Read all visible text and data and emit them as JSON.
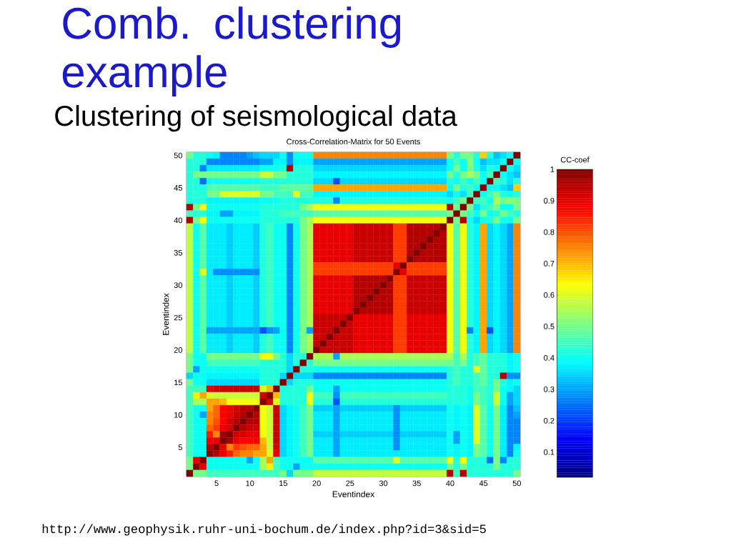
{
  "chart_data": {
    "type": "heatmap",
    "title": "Comb. clustering example",
    "subtitle": "Clustering of seismological data",
    "annotations": [
      "Cross-Correlation-Matrix for 50 Events",
      "http://www.geophysik.ruhr-uni-bochum.de/index.php?id=3&sid=5"
    ],
    "xlabel": "Eventindex",
    "ylabel": "Eventindex",
    "clabel": "CC-coef",
    "clim": [
      0.02,
      1
    ],
    "cticks": [
      0.1,
      0.2,
      0.3,
      0.4,
      0.5,
      0.6,
      0.7,
      0.8,
      0.9,
      1
    ],
    "categories": [
      null,
      null,
      null,
      null,
      "5",
      null,
      null,
      null,
      null,
      "10",
      null,
      null,
      null,
      null,
      "15",
      null,
      null,
      null,
      null,
      "20",
      null,
      null,
      null,
      null,
      "25",
      null,
      null,
      null,
      null,
      "30",
      null,
      null,
      null,
      null,
      "35",
      null,
      null,
      null,
      null,
      "40",
      null,
      null,
      null,
      null,
      "45",
      null,
      null,
      null,
      null,
      "50"
    ],
    "y_categories": [
      "50",
      null,
      null,
      null,
      null,
      "45",
      null,
      null,
      null,
      null,
      "40",
      null,
      null,
      null,
      null,
      "35",
      null,
      null,
      null,
      null,
      "30",
      null,
      null,
      null,
      null,
      "25",
      null,
      null,
      null,
      null,
      "20",
      null,
      null,
      null,
      null,
      "15",
      null,
      null,
      null,
      null,
      "10",
      null,
      null,
      null,
      null,
      "5",
      null,
      null,
      null,
      null
    ],
    "cells": [
      [
        0.5,
        0.42,
        0.42,
        0.4,
        0.38,
        0.27,
        0.27,
        0.27,
        0.27,
        0.3,
        0.33,
        0.35,
        0.35,
        0.35,
        0.4,
        0.28,
        0.4,
        0.4,
        0.4,
        0.75,
        0.75,
        0.75,
        0.75,
        0.75,
        0.75,
        0.75,
        0.75,
        0.75,
        0.75,
        0.75,
        0.75,
        0.75,
        0.75,
        0.75,
        0.75,
        0.75,
        0.75,
        0.75,
        0.75,
        0.5,
        0.42,
        0.5,
        0.5,
        0.42,
        0.68,
        0.42,
        0.33,
        0.36,
        0.4,
        1
      ],
      [
        0.42,
        0.42,
        0.42,
        0.27,
        0.27,
        0.27,
        0.27,
        0.27,
        0.27,
        0.27,
        0.27,
        0.3,
        0.3,
        0.38,
        0.38,
        0.28,
        0.38,
        0.38,
        0.38,
        0.3,
        0.3,
        0.3,
        0.3,
        0.3,
        0.3,
        0.3,
        0.3,
        0.3,
        0.3,
        0.3,
        0.3,
        0.3,
        0.3,
        0.3,
        0.3,
        0.3,
        0.3,
        0.3,
        0.3,
        0.4,
        0.45,
        0.4,
        0.52,
        0.4,
        0.33,
        0.36,
        0.36,
        0.4,
        1,
        0.4
      ],
      [
        0.42,
        0.42,
        0.27,
        0.37,
        0.37,
        0.37,
        0.37,
        0.37,
        0.37,
        0.37,
        0.37,
        0.4,
        0.4,
        0.4,
        0.42,
        0.95,
        0.42,
        0.42,
        0.42,
        0.35,
        0.35,
        0.35,
        0.35,
        0.35,
        0.35,
        0.35,
        0.35,
        0.35,
        0.35,
        0.35,
        0.35,
        0.35,
        0.35,
        0.35,
        0.35,
        0.35,
        0.35,
        0.35,
        0.35,
        0.4,
        0.5,
        0.4,
        0.5,
        0.42,
        0.36,
        0.42,
        0.4,
        1,
        0.4,
        0.36
      ],
      [
        0.42,
        0.5,
        0.5,
        0.5,
        0.5,
        0.5,
        0.5,
        0.5,
        0.5,
        0.5,
        0.5,
        0.58,
        0.58,
        0.5,
        0.5,
        0.42,
        0.42,
        0.42,
        0.42,
        0.38,
        0.38,
        0.38,
        0.38,
        0.38,
        0.38,
        0.38,
        0.38,
        0.38,
        0.38,
        0.38,
        0.38,
        0.38,
        0.38,
        0.38,
        0.38,
        0.38,
        0.38,
        0.38,
        0.38,
        0.5,
        0.42,
        0.5,
        0.55,
        0.5,
        0.4,
        0.45,
        1,
        0.4,
        0.36,
        0.33
      ],
      [
        0.42,
        0.42,
        0.25,
        0.4,
        0.4,
        0.4,
        0.4,
        0.4,
        0.4,
        0.4,
        0.4,
        0.42,
        0.42,
        0.42,
        0.42,
        0.42,
        0.42,
        0.42,
        0.42,
        0.35,
        0.35,
        0.35,
        0.22,
        0.35,
        0.35,
        0.35,
        0.35,
        0.35,
        0.35,
        0.35,
        0.35,
        0.35,
        0.35,
        0.35,
        0.35,
        0.35,
        0.35,
        0.35,
        0.35,
        0.42,
        0.4,
        0.45,
        0.4,
        0.45,
        0.4,
        1,
        0.45,
        0.42,
        0.36,
        0.42
      ],
      [
        0.42,
        0.42,
        0.42,
        0.47,
        0.47,
        0.47,
        0.47,
        0.47,
        0.47,
        0.47,
        0.47,
        0.45,
        0.45,
        0.45,
        0.48,
        0.48,
        0.48,
        0.48,
        0.48,
        0.72,
        0.72,
        0.72,
        0.72,
        0.72,
        0.72,
        0.72,
        0.72,
        0.72,
        0.72,
        0.72,
        0.72,
        0.72,
        0.72,
        0.72,
        0.72,
        0.72,
        0.72,
        0.72,
        0.72,
        0.4,
        0.5,
        0.42,
        0.45,
        0.4,
        1,
        0.4,
        0.4,
        0.36,
        0.33,
        0.68
      ],
      [
        0.42,
        0.42,
        0.42,
        0.5,
        0.5,
        0.6,
        0.6,
        0.6,
        0.6,
        0.6,
        0.6,
        0.5,
        0.5,
        0.45,
        0.45,
        0.45,
        0.6,
        0.45,
        0.45,
        0.38,
        0.38,
        0.38,
        0.38,
        0.38,
        0.38,
        0.38,
        0.38,
        0.38,
        0.38,
        0.38,
        0.38,
        0.38,
        0.38,
        0.38,
        0.38,
        0.38,
        0.38,
        0.38,
        0.38,
        0.35,
        0.4,
        0.36,
        0.45,
        1,
        0.4,
        0.45,
        0.5,
        0.42,
        0.4,
        0.42
      ],
      [
        0.42,
        0.42,
        0.42,
        0.38,
        0.38,
        0.38,
        0.38,
        0.38,
        0.38,
        0.38,
        0.38,
        0.4,
        0.4,
        0.4,
        0.42,
        0.42,
        0.42,
        0.42,
        0.42,
        0.42,
        0.42,
        0.42,
        0.27,
        0.42,
        0.42,
        0.42,
        0.42,
        0.42,
        0.42,
        0.42,
        0.42,
        0.42,
        0.42,
        0.42,
        0.42,
        0.42,
        0.42,
        0.42,
        0.42,
        0.4,
        0.45,
        0.5,
        1,
        0.45,
        0.45,
        0.4,
        0.55,
        0.5,
        0.52,
        0.5
      ],
      [
        0.95,
        0.5,
        0.62,
        0.4,
        0.4,
        0.4,
        0.4,
        0.4,
        0.4,
        0.4,
        0.4,
        0.42,
        0.42,
        0.42,
        0.42,
        0.42,
        0.42,
        0.5,
        0.55,
        0.62,
        0.62,
        0.62,
        0.62,
        0.62,
        0.62,
        0.62,
        0.62,
        0.62,
        0.62,
        0.62,
        0.62,
        0.62,
        0.62,
        0.62,
        0.62,
        0.62,
        0.62,
        0.62,
        0.62,
        0.95,
        0.5,
        1,
        0.5,
        0.36,
        0.42,
        0.45,
        0.5,
        0.4,
        0.4,
        0.5
      ],
      [
        0.45,
        0.42,
        0.42,
        0.38,
        0.38,
        0.3,
        0.3,
        0.38,
        0.38,
        0.38,
        0.38,
        0.42,
        0.42,
        0.42,
        0.45,
        0.45,
        0.45,
        0.45,
        0.45,
        0.47,
        0.47,
        0.47,
        0.47,
        0.47,
        0.47,
        0.47,
        0.47,
        0.47,
        0.47,
        0.47,
        0.47,
        0.47,
        0.47,
        0.47,
        0.47,
        0.47,
        0.47,
        0.47,
        0.47,
        0.5,
        1,
        0.5,
        0.45,
        0.4,
        0.5,
        0.4,
        0.42,
        0.5,
        0.45,
        0.42
      ],
      [
        0.95,
        0.5,
        0.62,
        0.4,
        0.4,
        0.4,
        0.4,
        0.4,
        0.4,
        0.4,
        0.4,
        0.42,
        0.42,
        0.42,
        0.42,
        0.42,
        0.42,
        0.5,
        0.55,
        0.62,
        0.62,
        0.62,
        0.62,
        0.62,
        0.62,
        0.62,
        0.62,
        0.62,
        0.62,
        0.62,
        0.62,
        0.62,
        0.62,
        0.62,
        0.62,
        0.62,
        0.62,
        0.62,
        0.62,
        1,
        0.5,
        0.95,
        0.4,
        0.35,
        0.4,
        0.42,
        0.5,
        0.4,
        0.4,
        0.5
      ],
      [
        0.57,
        0.4,
        0.47,
        0.37,
        0.37,
        0.37,
        0.34,
        0.37,
        0.37,
        0.37,
        0.34,
        0.42,
        0.45,
        0.4,
        0.4,
        0.27,
        0.4,
        0.5,
        0.55,
        0.9,
        0.9,
        0.9,
        0.9,
        0.9,
        0.9,
        0.93,
        0.93,
        0.93,
        0.93,
        0.93,
        0.93,
        0.82,
        0.82,
        0.95,
        0.95,
        0.95,
        0.95,
        0.95,
        1,
        0.62,
        0.47,
        0.62,
        0.42,
        0.38,
        0.72,
        0.35,
        0.38,
        0.35,
        0.3,
        0.75
      ],
      [
        0.57,
        0.4,
        0.47,
        0.37,
        0.37,
        0.37,
        0.34,
        0.37,
        0.37,
        0.37,
        0.34,
        0.42,
        0.45,
        0.4,
        0.4,
        0.27,
        0.4,
        0.5,
        0.55,
        0.9,
        0.9,
        0.9,
        0.9,
        0.9,
        0.9,
        0.93,
        0.93,
        0.93,
        0.93,
        0.93,
        0.93,
        0.82,
        0.82,
        0.95,
        0.95,
        0.95,
        0.95,
        1,
        0.95,
        0.62,
        0.47,
        0.62,
        0.42,
        0.38,
        0.72,
        0.35,
        0.38,
        0.35,
        0.3,
        0.75
      ],
      [
        0.57,
        0.4,
        0.47,
        0.37,
        0.37,
        0.37,
        0.34,
        0.37,
        0.37,
        0.37,
        0.34,
        0.42,
        0.45,
        0.4,
        0.4,
        0.27,
        0.4,
        0.5,
        0.55,
        0.9,
        0.9,
        0.9,
        0.9,
        0.9,
        0.9,
        0.93,
        0.93,
        0.93,
        0.93,
        0.93,
        0.93,
        0.82,
        0.82,
        0.95,
        0.95,
        0.95,
        1,
        0.95,
        0.95,
        0.62,
        0.47,
        0.62,
        0.42,
        0.38,
        0.72,
        0.35,
        0.38,
        0.35,
        0.3,
        0.75
      ],
      [
        0.57,
        0.4,
        0.47,
        0.37,
        0.37,
        0.37,
        0.34,
        0.37,
        0.37,
        0.37,
        0.34,
        0.42,
        0.45,
        0.4,
        0.4,
        0.27,
        0.4,
        0.5,
        0.55,
        0.9,
        0.9,
        0.9,
        0.9,
        0.9,
        0.9,
        0.93,
        0.93,
        0.93,
        0.93,
        0.93,
        0.93,
        0.82,
        0.82,
        0.95,
        0.95,
        1,
        0.95,
        0.95,
        0.95,
        0.62,
        0.47,
        0.62,
        0.42,
        0.38,
        0.72,
        0.35,
        0.38,
        0.35,
        0.3,
        0.75
      ],
      [
        0.57,
        0.4,
        0.47,
        0.37,
        0.37,
        0.37,
        0.34,
        0.37,
        0.37,
        0.37,
        0.34,
        0.42,
        0.45,
        0.4,
        0.4,
        0.27,
        0.4,
        0.5,
        0.55,
        0.9,
        0.9,
        0.9,
        0.9,
        0.9,
        0.9,
        0.93,
        0.93,
        0.93,
        0.93,
        0.93,
        0.93,
        0.82,
        0.82,
        0.95,
        1,
        0.95,
        0.95,
        0.95,
        0.95,
        0.62,
        0.47,
        0.62,
        0.42,
        0.38,
        0.72,
        0.35,
        0.38,
        0.35,
        0.3,
        0.75
      ],
      [
        0.57,
        0.4,
        0.47,
        0.37,
        0.37,
        0.37,
        0.34,
        0.37,
        0.37,
        0.37,
        0.34,
        0.42,
        0.45,
        0.4,
        0.4,
        0.27,
        0.4,
        0.5,
        0.55,
        0.9,
        0.9,
        0.9,
        0.9,
        0.9,
        0.9,
        0.93,
        0.93,
        0.93,
        0.93,
        0.93,
        0.93,
        0.82,
        0.82,
        1,
        0.95,
        0.95,
        0.95,
        0.95,
        0.95,
        0.62,
        0.47,
        0.62,
        0.42,
        0.38,
        0.72,
        0.35,
        0.38,
        0.35,
        0.3,
        0.75
      ],
      [
        0.57,
        0.4,
        0.47,
        0.37,
        0.37,
        0.37,
        0.34,
        0.37,
        0.37,
        0.37,
        0.34,
        0.42,
        0.45,
        0.4,
        0.4,
        0.27,
        0.4,
        0.5,
        0.55,
        0.82,
        0.82,
        0.82,
        0.82,
        0.82,
        0.82,
        0.82,
        0.82,
        0.82,
        0.82,
        0.82,
        0.82,
        0.9,
        1,
        0.82,
        0.82,
        0.82,
        0.82,
        0.82,
        0.82,
        0.62,
        0.47,
        0.62,
        0.42,
        0.38,
        0.72,
        0.35,
        0.38,
        0.35,
        0.3,
        0.75
      ],
      [
        0.57,
        0.4,
        0.6,
        0.37,
        0.28,
        0.28,
        0.28,
        0.28,
        0.28,
        0.28,
        0.28,
        0.42,
        0.45,
        0.4,
        0.4,
        0.27,
        0.4,
        0.5,
        0.55,
        0.82,
        0.82,
        0.82,
        0.82,
        0.82,
        0.82,
        0.82,
        0.82,
        0.82,
        0.82,
        0.82,
        0.82,
        1,
        0.9,
        0.82,
        0.82,
        0.82,
        0.82,
        0.82,
        0.82,
        0.62,
        0.47,
        0.62,
        0.42,
        0.38,
        0.72,
        0.35,
        0.38,
        0.35,
        0.3,
        0.75
      ],
      [
        0.57,
        0.4,
        0.47,
        0.37,
        0.37,
        0.37,
        0.34,
        0.37,
        0.37,
        0.37,
        0.34,
        0.42,
        0.45,
        0.4,
        0.4,
        0.27,
        0.4,
        0.5,
        0.55,
        0.9,
        0.9,
        0.9,
        0.9,
        0.9,
        0.9,
        0.95,
        0.95,
        0.95,
        0.95,
        0.95,
        1,
        0.82,
        0.82,
        0.93,
        0.93,
        0.93,
        0.93,
        0.93,
        0.93,
        0.62,
        0.47,
        0.62,
        0.42,
        0.38,
        0.72,
        0.35,
        0.38,
        0.35,
        0.3,
        0.75
      ],
      [
        0.57,
        0.4,
        0.47,
        0.37,
        0.37,
        0.37,
        0.34,
        0.37,
        0.37,
        0.37,
        0.34,
        0.42,
        0.45,
        0.4,
        0.4,
        0.27,
        0.4,
        0.5,
        0.55,
        0.9,
        0.9,
        0.9,
        0.9,
        0.9,
        0.9,
        0.95,
        0.95,
        0.95,
        0.95,
        1,
        0.95,
        0.82,
        0.82,
        0.93,
        0.93,
        0.93,
        0.93,
        0.93,
        0.93,
        0.62,
        0.47,
        0.62,
        0.42,
        0.38,
        0.72,
        0.35,
        0.38,
        0.35,
        0.3,
        0.75
      ],
      [
        0.57,
        0.4,
        0.47,
        0.37,
        0.37,
        0.37,
        0.34,
        0.37,
        0.37,
        0.37,
        0.34,
        0.42,
        0.45,
        0.4,
        0.4,
        0.27,
        0.4,
        0.5,
        0.55,
        0.9,
        0.9,
        0.9,
        0.9,
        0.9,
        0.9,
        0.95,
        0.95,
        0.95,
        1,
        0.95,
        0.95,
        0.82,
        0.82,
        0.93,
        0.93,
        0.93,
        0.93,
        0.93,
        0.93,
        0.62,
        0.47,
        0.62,
        0.42,
        0.38,
        0.72,
        0.35,
        0.38,
        0.35,
        0.3,
        0.75
      ],
      [
        0.57,
        0.4,
        0.47,
        0.37,
        0.37,
        0.37,
        0.34,
        0.37,
        0.37,
        0.37,
        0.34,
        0.42,
        0.45,
        0.4,
        0.4,
        0.27,
        0.4,
        0.5,
        0.55,
        0.9,
        0.9,
        0.9,
        0.9,
        0.9,
        0.9,
        0.95,
        0.95,
        1,
        0.95,
        0.95,
        0.95,
        0.82,
        0.82,
        0.93,
        0.93,
        0.93,
        0.93,
        0.93,
        0.93,
        0.62,
        0.47,
        0.62,
        0.42,
        0.38,
        0.72,
        0.35,
        0.38,
        0.35,
        0.3,
        0.75
      ],
      [
        0.57,
        0.4,
        0.47,
        0.37,
        0.37,
        0.37,
        0.34,
        0.37,
        0.37,
        0.37,
        0.34,
        0.42,
        0.45,
        0.4,
        0.4,
        0.27,
        0.4,
        0.5,
        0.55,
        0.9,
        0.9,
        0.9,
        0.9,
        0.9,
        0.9,
        0.95,
        1,
        0.95,
        0.95,
        0.95,
        0.95,
        0.82,
        0.82,
        0.93,
        0.93,
        0.93,
        0.93,
        0.93,
        0.93,
        0.62,
        0.47,
        0.62,
        0.42,
        0.38,
        0.72,
        0.35,
        0.38,
        0.35,
        0.3,
        0.75
      ],
      [
        0.57,
        0.4,
        0.47,
        0.37,
        0.37,
        0.37,
        0.34,
        0.37,
        0.37,
        0.37,
        0.34,
        0.42,
        0.45,
        0.4,
        0.4,
        0.27,
        0.4,
        0.5,
        0.55,
        0.9,
        0.9,
        0.9,
        0.9,
        0.9,
        0.9,
        1,
        0.95,
        0.95,
        0.95,
        0.95,
        0.95,
        0.82,
        0.82,
        0.93,
        0.93,
        0.93,
        0.93,
        0.93,
        0.93,
        0.62,
        0.47,
        0.62,
        0.42,
        0.38,
        0.72,
        0.35,
        0.38,
        0.35,
        0.3,
        0.75
      ],
      [
        0.57,
        0.4,
        0.47,
        0.37,
        0.37,
        0.37,
        0.34,
        0.37,
        0.37,
        0.37,
        0.34,
        0.42,
        0.45,
        0.4,
        0.4,
        0.27,
        0.4,
        0.5,
        0.55,
        0.93,
        0.93,
        0.93,
        0.93,
        0.93,
        1,
        0.9,
        0.9,
        0.9,
        0.9,
        0.9,
        0.9,
        0.82,
        0.82,
        0.9,
        0.9,
        0.9,
        0.9,
        0.9,
        0.9,
        0.62,
        0.47,
        0.62,
        0.42,
        0.38,
        0.72,
        0.35,
        0.38,
        0.35,
        0.3,
        0.75
      ],
      [
        0.57,
        0.4,
        0.47,
        0.37,
        0.37,
        0.37,
        0.34,
        0.37,
        0.37,
        0.37,
        0.34,
        0.42,
        0.45,
        0.4,
        0.4,
        0.27,
        0.4,
        0.5,
        0.55,
        0.93,
        0.93,
        0.93,
        0.93,
        1,
        0.93,
        0.9,
        0.9,
        0.9,
        0.9,
        0.9,
        0.9,
        0.82,
        0.82,
        0.9,
        0.9,
        0.9,
        0.9,
        0.9,
        0.9,
        0.62,
        0.47,
        0.62,
        0.42,
        0.38,
        0.72,
        0.35,
        0.38,
        0.35,
        0.3,
        0.75
      ],
      [
        0.57,
        0.4,
        0.47,
        0.3,
        0.3,
        0.3,
        0.3,
        0.3,
        0.3,
        0.3,
        0.3,
        0.22,
        0.28,
        0.3,
        0.4,
        0.27,
        0.4,
        0.5,
        0.3,
        0.93,
        0.93,
        0.93,
        1,
        0.93,
        0.93,
        0.9,
        0.9,
        0.9,
        0.9,
        0.9,
        0.9,
        0.82,
        0.82,
        0.9,
        0.9,
        0.9,
        0.9,
        0.9,
        0.9,
        0.62,
        0.47,
        0.62,
        0.27,
        0.38,
        0.72,
        0.22,
        0.38,
        0.35,
        0.3,
        0.75
      ],
      [
        0.57,
        0.4,
        0.47,
        0.37,
        0.37,
        0.37,
        0.34,
        0.37,
        0.37,
        0.37,
        0.34,
        0.42,
        0.45,
        0.4,
        0.4,
        0.27,
        0.4,
        0.5,
        0.55,
        0.93,
        0.93,
        1,
        0.93,
        0.93,
        0.93,
        0.9,
        0.9,
        0.9,
        0.9,
        0.9,
        0.9,
        0.82,
        0.82,
        0.9,
        0.9,
        0.9,
        0.9,
        0.9,
        0.9,
        0.62,
        0.47,
        0.62,
        0.42,
        0.38,
        0.72,
        0.35,
        0.38,
        0.35,
        0.3,
        0.75
      ],
      [
        0.57,
        0.4,
        0.47,
        0.37,
        0.37,
        0.37,
        0.34,
        0.37,
        0.37,
        0.37,
        0.34,
        0.42,
        0.45,
        0.4,
        0.4,
        0.27,
        0.4,
        0.5,
        0.55,
        0.93,
        1,
        0.93,
        0.93,
        0.93,
        0.93,
        0.9,
        0.9,
        0.9,
        0.9,
        0.9,
        0.9,
        0.82,
        0.82,
        0.9,
        0.9,
        0.9,
        0.9,
        0.9,
        0.9,
        0.62,
        0.47,
        0.62,
        0.42,
        0.38,
        0.72,
        0.35,
        0.38,
        0.35,
        0.3,
        0.75
      ],
      [
        0.57,
        0.4,
        0.47,
        0.37,
        0.37,
        0.37,
        0.34,
        0.37,
        0.37,
        0.37,
        0.34,
        0.42,
        0.45,
        0.4,
        0.4,
        0.27,
        0.4,
        0.5,
        0.55,
        1,
        0.93,
        0.93,
        0.93,
        0.93,
        0.93,
        0.9,
        0.9,
        0.9,
        0.9,
        0.9,
        0.9,
        0.82,
        0.82,
        0.9,
        0.9,
        0.9,
        0.9,
        0.9,
        0.9,
        0.62,
        0.47,
        0.62,
        0.42,
        0.38,
        0.72,
        0.35,
        0.38,
        0.35,
        0.3,
        0.75
      ],
      [
        0.5,
        0.4,
        0.4,
        0.5,
        0.5,
        0.5,
        0.5,
        0.5,
        0.5,
        0.5,
        0.5,
        0.62,
        0.62,
        0.5,
        0.42,
        0.35,
        0.42,
        0.42,
        1,
        0.55,
        0.55,
        0.55,
        0.3,
        0.55,
        0.55,
        0.55,
        0.55,
        0.55,
        0.55,
        0.55,
        0.55,
        0.55,
        0.55,
        0.55,
        0.55,
        0.55,
        0.55,
        0.55,
        0.55,
        0.55,
        0.45,
        0.55,
        0.42,
        0.45,
        0.48,
        0.42,
        0.42,
        0.42,
        0.38,
        0.4
      ],
      [
        0.5,
        0.4,
        0.4,
        0.45,
        0.45,
        0.45,
        0.45,
        0.45,
        0.45,
        0.45,
        0.45,
        0.42,
        0.42,
        0.42,
        0.42,
        0.35,
        0.42,
        1,
        0.42,
        0.5,
        0.5,
        0.5,
        0.5,
        0.5,
        0.5,
        0.5,
        0.5,
        0.5,
        0.5,
        0.5,
        0.5,
        0.5,
        0.5,
        0.5,
        0.5,
        0.5,
        0.5,
        0.5,
        0.5,
        0.5,
        0.45,
        0.5,
        0.42,
        0.45,
        0.48,
        0.42,
        0.42,
        0.42,
        0.38,
        0.4
      ],
      [
        0.5,
        0.3,
        0.4,
        0.4,
        0.4,
        0.4,
        0.4,
        0.4,
        0.4,
        0.4,
        0.4,
        0.42,
        0.42,
        0.42,
        0.42,
        0.35,
        1,
        0.42,
        0.42,
        0.4,
        0.4,
        0.4,
        0.4,
        0.4,
        0.4,
        0.4,
        0.4,
        0.4,
        0.4,
        0.4,
        0.4,
        0.4,
        0.4,
        0.4,
        0.4,
        0.4,
        0.4,
        0.4,
        0.4,
        0.42,
        0.45,
        0.42,
        0.42,
        0.6,
        0.48,
        0.42,
        0.42,
        0.42,
        0.38,
        0.4
      ],
      [
        0.35,
        0.4,
        0.4,
        0.38,
        0.38,
        0.38,
        0.38,
        0.38,
        0.38,
        0.38,
        0.38,
        0.42,
        0.42,
        0.42,
        0.35,
        1,
        0.35,
        0.35,
        0.35,
        0.27,
        0.27,
        0.27,
        0.27,
        0.27,
        0.27,
        0.27,
        0.27,
        0.27,
        0.27,
        0.27,
        0.27,
        0.27,
        0.27,
        0.27,
        0.27,
        0.27,
        0.27,
        0.27,
        0.27,
        0.42,
        0.45,
        0.42,
        0.42,
        0.45,
        0.48,
        0.42,
        0.42,
        0.95,
        0.28,
        0.28
      ],
      [
        0.5,
        0.4,
        0.4,
        0.35,
        0.35,
        0.35,
        0.35,
        0.35,
        0.35,
        0.35,
        0.35,
        0.42,
        0.42,
        0.42,
        1,
        0.35,
        0.42,
        0.42,
        0.42,
        0.4,
        0.4,
        0.4,
        0.4,
        0.4,
        0.4,
        0.4,
        0.4,
        0.4,
        0.4,
        0.4,
        0.4,
        0.4,
        0.4,
        0.4,
        0.4,
        0.4,
        0.4,
        0.4,
        0.4,
        0.42,
        0.45,
        0.42,
        0.42,
        0.45,
        0.48,
        0.42,
        0.5,
        0.42,
        0.38,
        0.4
      ],
      [
        0.45,
        0.45,
        0.45,
        0.9,
        0.92,
        0.93,
        0.93,
        0.93,
        0.93,
        0.93,
        0.93,
        0.6,
        0.7,
        1,
        0.42,
        0.42,
        0.42,
        0.42,
        0.5,
        0.4,
        0.4,
        0.4,
        0.3,
        0.4,
        0.4,
        0.4,
        0.4,
        0.4,
        0.4,
        0.4,
        0.4,
        0.4,
        0.4,
        0.4,
        0.4,
        0.4,
        0.4,
        0.4,
        0.4,
        0.42,
        0.42,
        0.42,
        0.4,
        0.45,
        0.45,
        0.42,
        0.5,
        0.4,
        0.38,
        0.35
      ],
      [
        0.45,
        0.65,
        0.72,
        0.6,
        0.58,
        0.58,
        0.58,
        0.58,
        0.58,
        0.58,
        0.58,
        0.92,
        1,
        0.7,
        0.42,
        0.42,
        0.42,
        0.42,
        0.62,
        0.45,
        0.45,
        0.45,
        0.28,
        0.45,
        0.45,
        0.45,
        0.45,
        0.45,
        0.45,
        0.45,
        0.45,
        0.45,
        0.45,
        0.45,
        0.45,
        0.45,
        0.45,
        0.45,
        0.45,
        0.42,
        0.42,
        0.42,
        0.4,
        0.5,
        0.45,
        0.42,
        0.58,
        0.4,
        0.3,
        0.35
      ],
      [
        0.45,
        0.55,
        0.55,
        0.72,
        0.72,
        0.7,
        0.62,
        0.62,
        0.62,
        0.62,
        0.62,
        1,
        0.92,
        0.6,
        0.42,
        0.42,
        0.42,
        0.42,
        0.62,
        0.42,
        0.42,
        0.42,
        0.22,
        0.42,
        0.42,
        0.42,
        0.42,
        0.42,
        0.42,
        0.42,
        0.42,
        0.42,
        0.42,
        0.42,
        0.42,
        0.42,
        0.42,
        0.42,
        0.42,
        0.42,
        0.42,
        0.42,
        0.4,
        0.5,
        0.45,
        0.42,
        0.58,
        0.4,
        0.3,
        0.35
      ],
      [
        0.45,
        0.4,
        0.4,
        0.72,
        0.78,
        0.88,
        0.9,
        0.92,
        0.95,
        0.95,
        1,
        0.62,
        0.58,
        0.93,
        0.35,
        0.38,
        0.4,
        0.45,
        0.5,
        0.34,
        0.34,
        0.34,
        0.3,
        0.34,
        0.34,
        0.34,
        0.34,
        0.34,
        0.34,
        0.34,
        0.34,
        0.28,
        0.34,
        0.34,
        0.34,
        0.34,
        0.34,
        0.34,
        0.34,
        0.4,
        0.38,
        0.4,
        0.38,
        0.6,
        0.47,
        0.4,
        0.5,
        0.37,
        0.27,
        0.33
      ],
      [
        0.45,
        0.4,
        0.3,
        0.75,
        0.78,
        0.88,
        0.9,
        0.93,
        0.95,
        1,
        0.95,
        0.62,
        0.58,
        0.93,
        0.35,
        0.38,
        0.4,
        0.45,
        0.5,
        0.37,
        0.37,
        0.37,
        0.3,
        0.37,
        0.37,
        0.37,
        0.37,
        0.37,
        0.37,
        0.37,
        0.37,
        0.28,
        0.37,
        0.37,
        0.37,
        0.37,
        0.37,
        0.37,
        0.37,
        0.4,
        0.38,
        0.4,
        0.38,
        0.6,
        0.47,
        0.4,
        0.5,
        0.37,
        0.27,
        0.3
      ],
      [
        0.45,
        0.4,
        0.4,
        0.75,
        0.8,
        0.88,
        0.92,
        0.95,
        1,
        0.95,
        0.95,
        0.62,
        0.58,
        0.93,
        0.35,
        0.38,
        0.4,
        0.45,
        0.5,
        0.37,
        0.37,
        0.37,
        0.3,
        0.37,
        0.37,
        0.37,
        0.37,
        0.37,
        0.37,
        0.37,
        0.37,
        0.28,
        0.37,
        0.37,
        0.37,
        0.37,
        0.37,
        0.37,
        0.37,
        0.4,
        0.38,
        0.4,
        0.38,
        0.6,
        0.47,
        0.4,
        0.5,
        0.37,
        0.27,
        0.27
      ],
      [
        0.45,
        0.4,
        0.4,
        0.78,
        0.82,
        0.9,
        0.92,
        1,
        0.95,
        0.93,
        0.92,
        0.62,
        0.58,
        0.93,
        0.35,
        0.38,
        0.4,
        0.45,
        0.5,
        0.37,
        0.37,
        0.37,
        0.3,
        0.37,
        0.37,
        0.37,
        0.37,
        0.37,
        0.37,
        0.37,
        0.37,
        0.28,
        0.37,
        0.37,
        0.37,
        0.37,
        0.37,
        0.37,
        0.37,
        0.4,
        0.38,
        0.4,
        0.38,
        0.6,
        0.47,
        0.4,
        0.5,
        0.37,
        0.27,
        0.27
      ],
      [
        0.45,
        0.4,
        0.4,
        0.85,
        0.75,
        0.97,
        1,
        0.92,
        0.92,
        0.9,
        0.9,
        0.62,
        0.58,
        0.93,
        0.35,
        0.38,
        0.4,
        0.45,
        0.5,
        0.34,
        0.34,
        0.34,
        0.3,
        0.34,
        0.34,
        0.34,
        0.34,
        0.34,
        0.34,
        0.34,
        0.34,
        0.28,
        0.34,
        0.34,
        0.34,
        0.34,
        0.34,
        0.34,
        0.34,
        0.4,
        0.3,
        0.4,
        0.38,
        0.6,
        0.47,
        0.4,
        0.5,
        0.37,
        0.27,
        0.27
      ],
      [
        0.45,
        0.4,
        0.4,
        0.9,
        0.9,
        1,
        0.97,
        0.9,
        0.88,
        0.88,
        0.88,
        0.7,
        0.58,
        0.93,
        0.35,
        0.38,
        0.4,
        0.45,
        0.5,
        0.37,
        0.37,
        0.37,
        0.3,
        0.37,
        0.37,
        0.37,
        0.37,
        0.37,
        0.37,
        0.37,
        0.37,
        0.28,
        0.37,
        0.37,
        0.37,
        0.37,
        0.37,
        0.37,
        0.37,
        0.4,
        0.3,
        0.4,
        0.38,
        0.6,
        0.47,
        0.4,
        0.5,
        0.37,
        0.27,
        0.27
      ],
      [
        0.45,
        0.4,
        0.4,
        0.95,
        1,
        0.9,
        0.75,
        0.82,
        0.8,
        0.78,
        0.78,
        0.72,
        0.58,
        0.92,
        0.35,
        0.38,
        0.4,
        0.45,
        0.5,
        0.37,
        0.37,
        0.37,
        0.3,
        0.37,
        0.37,
        0.37,
        0.37,
        0.37,
        0.37,
        0.37,
        0.37,
        0.28,
        0.37,
        0.37,
        0.37,
        0.37,
        0.37,
        0.37,
        0.37,
        0.4,
        0.38,
        0.4,
        0.38,
        0.5,
        0.47,
        0.4,
        0.5,
        0.37,
        0.27,
        0.38
      ],
      [
        0.45,
        0.4,
        0.4,
        1,
        0.95,
        0.9,
        0.85,
        0.78,
        0.75,
        0.75,
        0.72,
        0.72,
        0.6,
        0.9,
        0.35,
        0.38,
        0.4,
        0.45,
        0.5,
        0.37,
        0.37,
        0.37,
        0.3,
        0.37,
        0.37,
        0.37,
        0.37,
        0.37,
        0.37,
        0.37,
        0.37,
        0.37,
        0.37,
        0.37,
        0.37,
        0.37,
        0.37,
        0.37,
        0.37,
        0.4,
        0.38,
        0.4,
        0.38,
        0.5,
        0.47,
        0.4,
        0.5,
        0.37,
        0.27,
        0.4
      ],
      [
        0.5,
        0.9,
        1,
        0.4,
        0.4,
        0.4,
        0.4,
        0.4,
        0.4,
        0.3,
        0.4,
        0.55,
        0.72,
        0.45,
        0.4,
        0.4,
        0.4,
        0.4,
        0.4,
        0.47,
        0.47,
        0.47,
        0.47,
        0.47,
        0.47,
        0.47,
        0.47,
        0.47,
        0.47,
        0.47,
        0.47,
        0.6,
        0.47,
        0.47,
        0.47,
        0.47,
        0.47,
        0.47,
        0.47,
        0.62,
        0.42,
        0.62,
        0.42,
        0.42,
        0.42,
        0.25,
        0.5,
        0.27,
        0.42,
        0.42
      ],
      [
        0.5,
        1,
        0.9,
        0.4,
        0.4,
        0.4,
        0.4,
        0.4,
        0.4,
        0.4,
        0.4,
        0.55,
        0.65,
        0.45,
        0.4,
        0.4,
        0.3,
        0.4,
        0.4,
        0.4,
        0.4,
        0.4,
        0.4,
        0.4,
        0.4,
        0.4,
        0.4,
        0.4,
        0.4,
        0.4,
        0.4,
        0.4,
        0.4,
        0.4,
        0.4,
        0.4,
        0.4,
        0.4,
        0.4,
        0.5,
        0.42,
        0.5,
        0.42,
        0.42,
        0.42,
        0.42,
        0.5,
        0.42,
        0.42,
        0.42
      ],
      [
        1,
        0.5,
        0.5,
        0.45,
        0.45,
        0.45,
        0.45,
        0.45,
        0.45,
        0.45,
        0.45,
        0.45,
        0.45,
        0.45,
        0.5,
        0.35,
        0.5,
        0.5,
        0.5,
        0.57,
        0.57,
        0.57,
        0.57,
        0.57,
        0.57,
        0.57,
        0.57,
        0.57,
        0.57,
        0.57,
        0.57,
        0.57,
        0.57,
        0.57,
        0.57,
        0.57,
        0.57,
        0.57,
        0.57,
        0.95,
        0.45,
        0.95,
        0.42,
        0.42,
        0.42,
        0.42,
        0.42,
        0.42,
        0.42,
        0.5
      ]
    ]
  }
}
